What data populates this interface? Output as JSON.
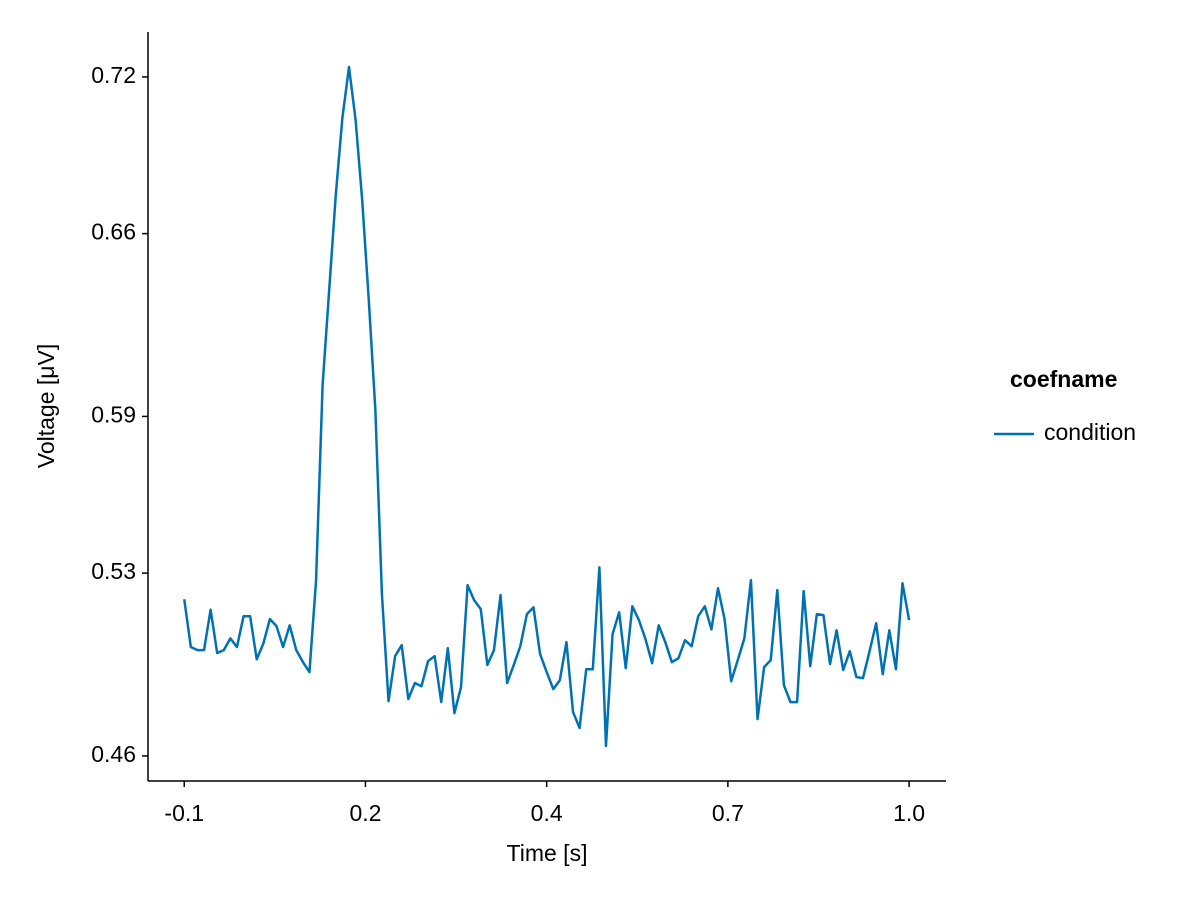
{
  "chart_data": {
    "type": "line",
    "x_label": "Time [s]",
    "y_label": "Voltage [μV]",
    "legend_title": "coefname",
    "legend_position": "right",
    "grid": false,
    "xlim": [
      -0.155,
      1.056
    ],
    "xticks": [
      {
        "value": -0.1,
        "label": "-0.1"
      },
      {
        "value": 0.175,
        "label": "0.2"
      },
      {
        "value": 0.45,
        "label": "0.4"
      },
      {
        "value": 0.725,
        "label": "0.7"
      },
      {
        "value": 1.0,
        "label": "1.0"
      }
    ],
    "ylim": [
      0.4504,
      0.7372
    ],
    "yticks": [
      0.46,
      0.53,
      0.59,
      0.66,
      0.72
    ],
    "x": [
      -0.1,
      -0.09,
      -0.08,
      -0.07,
      -0.06,
      -0.05,
      -0.04,
      -0.03,
      -0.02,
      -0.01,
      0,
      0.01,
      0.02,
      0.03,
      0.04,
      0.05,
      0.06,
      0.07,
      0.08,
      0.09,
      0.1,
      0.11,
      0.12,
      0.13,
      0.14,
      0.15,
      0.16,
      0.17,
      0.18,
      0.19,
      0.2,
      0.21,
      0.22,
      0.23,
      0.24,
      0.25,
      0.26,
      0.27,
      0.28,
      0.29,
      0.3,
      0.31,
      0.32,
      0.33,
      0.34,
      0.35,
      0.36,
      0.37,
      0.38,
      0.39,
      0.4,
      0.41,
      0.42,
      0.43,
      0.44,
      0.45,
      0.46,
      0.47,
      0.48,
      0.49,
      0.5,
      0.51,
      0.52,
      0.53,
      0.54,
      0.55,
      0.56,
      0.57,
      0.58,
      0.59,
      0.6,
      0.61,
      0.62,
      0.63,
      0.64,
      0.65,
      0.66,
      0.67,
      0.68,
      0.69,
      0.7,
      0.71,
      0.72,
      0.73,
      0.74,
      0.75,
      0.76,
      0.77,
      0.78,
      0.79,
      0.8,
      0.81,
      0.82,
      0.83,
      0.84,
      0.85,
      0.86,
      0.87,
      0.88,
      0.89,
      0.9,
      0.91,
      0.92,
      0.93,
      0.94,
      0.95,
      0.96,
      0.97,
      0.98,
      0.99,
      1.0
    ],
    "series": [
      {
        "name": "condition",
        "color": "#0072b2",
        "values": [
          0.52,
          0.5017,
          0.5005,
          0.5005,
          0.516,
          0.4994,
          0.5005,
          0.505,
          0.5017,
          0.5135,
          0.5135,
          0.497,
          0.503,
          0.5124,
          0.5097,
          0.5017,
          0.51,
          0.5005,
          0.496,
          0.4921,
          0.527,
          0.6022,
          0.6385,
          0.6749,
          0.7043,
          0.7238,
          0.7036,
          0.673,
          0.6347,
          0.5927,
          0.5219,
          0.481,
          0.4982,
          0.5024,
          0.4818,
          0.4879,
          0.4867,
          0.4963,
          0.4982,
          0.4806,
          0.5013,
          0.4764,
          0.4863,
          0.5254,
          0.5196,
          0.5162,
          0.4948,
          0.5005,
          0.5216,
          0.4879,
          0.4948,
          0.502,
          0.5143,
          0.5169,
          0.499,
          0.4921,
          0.4856,
          0.489,
          0.5036,
          0.4768,
          0.4707,
          0.4932,
          0.4932,
          0.5322,
          0.4638,
          0.5066,
          0.515,
          0.4936,
          0.5173,
          0.512,
          0.5047,
          0.4955,
          0.51,
          0.5036,
          0.4959,
          0.4974,
          0.5043,
          0.502,
          0.5135,
          0.5173,
          0.5085,
          0.5242,
          0.5124,
          0.4886,
          0.4967,
          0.505,
          0.5273,
          0.4741,
          0.494,
          0.4967,
          0.5235,
          0.4871,
          0.4806,
          0.4806,
          0.5231,
          0.4944,
          0.5143,
          0.5139,
          0.4952,
          0.5081,
          0.4929,
          0.5001,
          0.4902,
          0.4898,
          0.5001,
          0.5108,
          0.4913,
          0.5081,
          0.4932,
          0.5261,
          0.512
        ]
      }
    ]
  }
}
